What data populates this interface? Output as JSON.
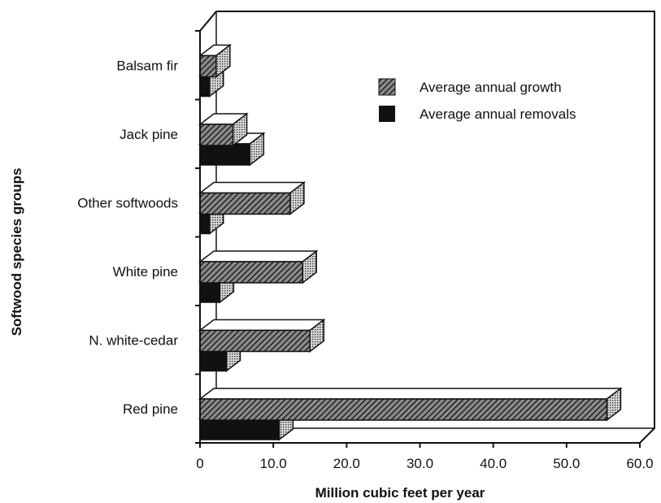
{
  "chart_data": {
    "type": "bar",
    "orientation": "horizontal",
    "style": "3d",
    "categories": [
      "Balsam fir",
      "Jack pine",
      "Other softwoods",
      "White pine",
      "N. white-cedar",
      "Red pine"
    ],
    "series": [
      {
        "name": "Average annual growth",
        "values": [
          2.2,
          4.5,
          12.3,
          14.0,
          15.0,
          55.5
        ],
        "color": "#4a4a4a",
        "pattern": "hatched"
      },
      {
        "name": "Average annual removals",
        "values": [
          1.3,
          6.8,
          1.3,
          2.7,
          3.6,
          10.8
        ],
        "color": "#111111",
        "pattern": "solid"
      }
    ],
    "xlabel": "Million cubic feet per year",
    "ylabel": "Softwood species groups",
    "xlim": [
      0,
      60
    ],
    "xticks": [
      "0",
      "10.0",
      "20.0",
      "30.0",
      "40.0",
      "50.0",
      "60.0"
    ],
    "grid": false,
    "legend_position": "top-right"
  }
}
